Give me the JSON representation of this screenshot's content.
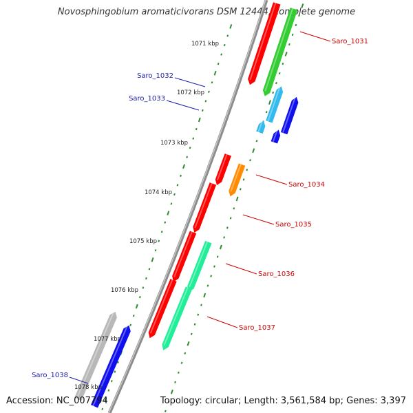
{
  "title": "Novosphingobium aromaticivorans DSM 12444, complete genome",
  "footer": {
    "accession": "Accession: NC_007794",
    "topology": "Topology: circular; Length: 3,561,584 bp; Genes: 3,397"
  },
  "colors": {
    "backbone": "#8c8c8c",
    "tick": "#2e8b2e",
    "label_red": "#cc0000",
    "label_blue": "#1a1aa8"
  },
  "kbp_labels": [
    "1071 kbp",
    "1072 kbp",
    "1073 kbp",
    "1074 kbp",
    "1075 kbp",
    "1076 kbp",
    "1077 kbp",
    "1078 kbp"
  ],
  "genes": [
    {
      "name": "Saro_1031",
      "strand": "minus",
      "color": "#ff0000"
    },
    {
      "name": "Saro_1031",
      "strand": "plus",
      "color": "#33cc33"
    },
    {
      "name": "Saro_1032",
      "strand": "plus",
      "color": "#33bbee"
    },
    {
      "name": "Saro_1032",
      "strand": "plus",
      "color": "#1010ee"
    },
    {
      "name": "Saro_1033",
      "strand": "plus",
      "color": "#33bbee"
    },
    {
      "name": "Saro_1033",
      "strand": "plus",
      "color": "#1010ee"
    },
    {
      "name": "Saro_1034",
      "strand": "minus",
      "color": "#ff0000"
    },
    {
      "name": "Saro_1034",
      "strand": "minus",
      "color": "#ff8c00"
    },
    {
      "name": "Saro_1035",
      "strand": "minus",
      "color": "#ff0000"
    },
    {
      "name": "Saro_1036",
      "strand": "minus",
      "color": "#ff0000"
    },
    {
      "name": "Saro_1036",
      "strand": "minus",
      "color": "#22ee99"
    },
    {
      "name": "Saro_1037",
      "strand": "minus",
      "color": "#ff0000"
    },
    {
      "name": "Saro_1037",
      "strand": "minus",
      "color": "#22ee99"
    },
    {
      "name": "Saro_1038",
      "strand": "plus",
      "color": "#b8b8b8"
    },
    {
      "name": "Saro_1038",
      "strand": "plus",
      "color": "#1010ee"
    }
  ],
  "labels": [
    {
      "text": "Saro_1031"
    },
    {
      "text": "Saro_1032"
    },
    {
      "text": "Saro_1033"
    },
    {
      "text": "Saro_1034"
    },
    {
      "text": "Saro_1035"
    },
    {
      "text": "Saro_1036"
    },
    {
      "text": "Saro_1037"
    },
    {
      "text": "Saro_1038"
    }
  ]
}
